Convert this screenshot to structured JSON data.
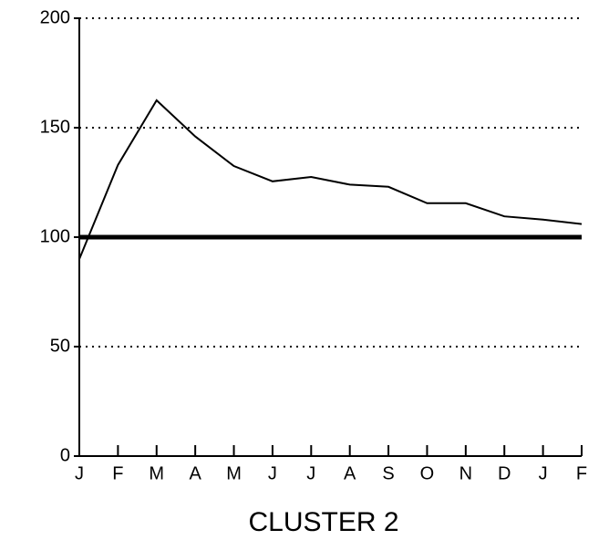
{
  "chart_data": {
    "type": "line",
    "title": "CLUSTER 2",
    "categories": [
      "J",
      "F",
      "M",
      "A",
      "M",
      "J",
      "J",
      "A",
      "S",
      "O",
      "N",
      "D",
      "J",
      "F"
    ],
    "series": [
      {
        "color": "#000000",
        "values": [
          90,
          133,
          162.5,
          146,
          132.5,
          125.5,
          127.5,
          124,
          123,
          115.5,
          115.5,
          109.5,
          108,
          106
        ]
      }
    ],
    "reference_line": 100,
    "ylim": [
      0,
      200
    ],
    "yticks": [
      0,
      50,
      100,
      150,
      200
    ],
    "grid": true
  }
}
